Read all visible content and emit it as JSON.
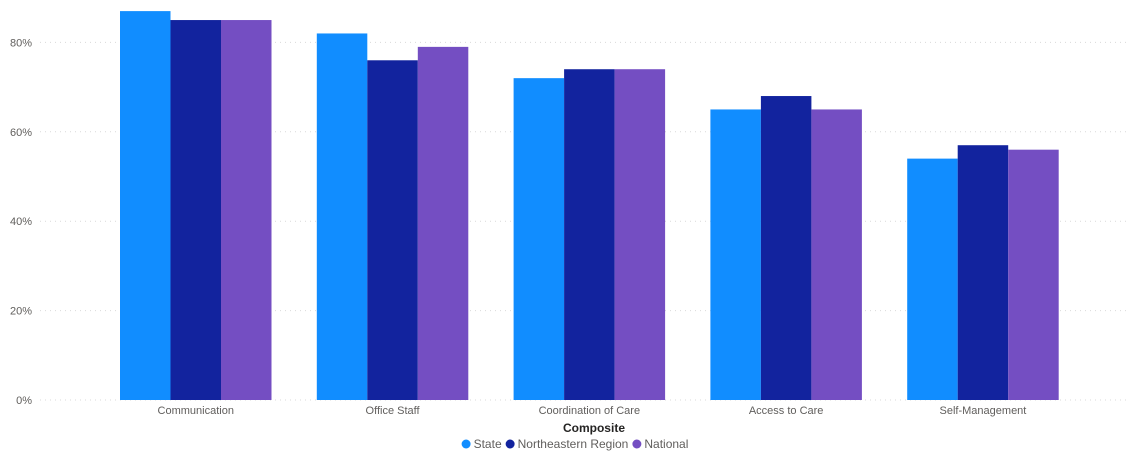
{
  "chart_data": {
    "type": "bar",
    "title": "",
    "xlabel": "Composite",
    "ylabel": "",
    "categories": [
      "Communication",
      "Office Staff",
      "Coordination of Care",
      "Access to Care",
      "Self-Management"
    ],
    "series": [
      {
        "name": "State",
        "color": "#118dff",
        "values": [
          87,
          82,
          72,
          65,
          54
        ]
      },
      {
        "name": "Northeastern Region",
        "color": "#12239e",
        "values": [
          85,
          76,
          74,
          68,
          57
        ]
      },
      {
        "name": "National",
        "color": "#744ec2",
        "values": [
          85,
          79,
          74,
          65,
          56
        ]
      }
    ],
    "ylim": [
      0,
      90
    ],
    "yticks": [
      0,
      20,
      40,
      60,
      80
    ],
    "ytick_labels": [
      "0%",
      "20%",
      "40%",
      "60%",
      "80%"
    ],
    "grid": true,
    "legend_position": "bottom-center"
  }
}
